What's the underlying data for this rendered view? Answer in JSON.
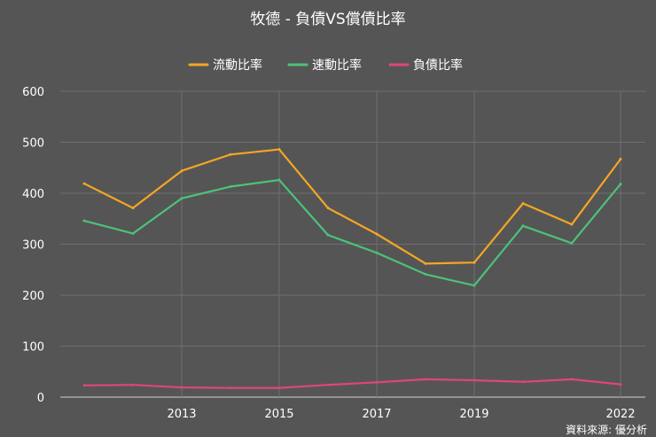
{
  "chart_data": {
    "type": "line",
    "title": "牧德 - 負債VS償債比率",
    "xlabel": "",
    "ylabel": "",
    "x": [
      2011,
      2012,
      2013,
      2014,
      2015,
      2016,
      2017,
      2018,
      2019,
      2020,
      2021,
      2022
    ],
    "x_ticks": [
      "2013",
      "2015",
      "2017",
      "2019",
      "2022"
    ],
    "x_tick_values": [
      2013,
      2015,
      2017,
      2019,
      2022
    ],
    "y_ticks": [
      "0",
      "100",
      "200",
      "300",
      "400",
      "500",
      "600"
    ],
    "ylim": [
      0,
      600
    ],
    "grid": true,
    "legend_position": "top",
    "series": [
      {
        "name": "流動比率",
        "color": "#f5a623",
        "values": [
          419,
          371,
          444,
          476,
          486,
          371,
          320,
          262,
          264,
          380,
          339,
          467
        ]
      },
      {
        "name": "速動比率",
        "color": "#4cc27a",
        "values": [
          346,
          321,
          390,
          413,
          426,
          318,
          283,
          241,
          219,
          336,
          302,
          418
        ]
      },
      {
        "name": "負債比率",
        "color": "#e0457b",
        "values": [
          23,
          24,
          19,
          18,
          18,
          24,
          29,
          35,
          33,
          30,
          35,
          25
        ]
      }
    ]
  },
  "source": "資料來源: 優分析"
}
